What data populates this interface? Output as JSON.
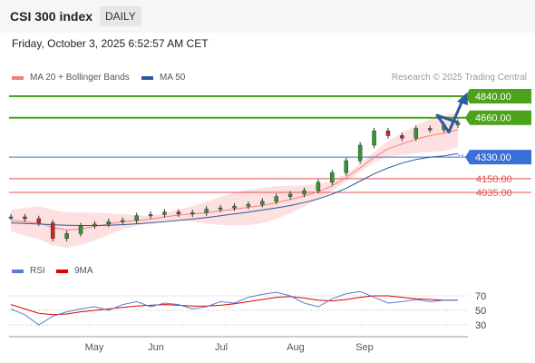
{
  "header": {
    "title": "CSI 300 index",
    "period": "DAILY"
  },
  "datetime": "Friday, October 3, 2025 6:52:57 AM CET",
  "legend": {
    "ma20": {
      "label": "MA 20 + Bollinger Bands",
      "color": "#f08080"
    },
    "ma50": {
      "label": "MA 50",
      "color": "#2d5a9c"
    },
    "rsi": {
      "label": "RSI",
      "color": "#5b7bd5"
    },
    "ma9": {
      "label": "9MA",
      "color": "#e00000"
    }
  },
  "credit": "Research © 2025 Trading Central",
  "chart_data": {
    "type": "candlestick",
    "levels": [
      {
        "value": 4840.0,
        "label": "4840.00",
        "kind": "target",
        "color": "#4aa31a"
      },
      {
        "value": 4660.0,
        "label": "4660.00",
        "kind": "target",
        "color": "#4aa31a"
      },
      {
        "value": 4330.0,
        "label": "4330.00",
        "kind": "pivot",
        "color": "#3a6fd8"
      },
      {
        "value": 4150.0,
        "label": "4150.00",
        "kind": "support",
        "color": "#e05050"
      },
      {
        "value": 4035.0,
        "label": "4035.00",
        "kind": "support",
        "color": "#e05050"
      }
    ],
    "x_labels": [
      "May",
      "Jun",
      "Jul",
      "Aug",
      "Sep"
    ],
    "price_approx": [
      3830,
      3815,
      3780,
      3650,
      3690,
      3755,
      3770,
      3790,
      3800,
      3840,
      3850,
      3870,
      3855,
      3865,
      3895,
      3905,
      3920,
      3935,
      3960,
      4000,
      4020,
      4050,
      4120,
      4200,
      4300,
      4430,
      4550,
      4510,
      4490,
      4570,
      4560,
      4600,
      4620
    ],
    "ma20_approx": [
      3800,
      3790,
      3780,
      3740,
      3720,
      3730,
      3750,
      3770,
      3790,
      3800,
      3810,
      3830,
      3845,
      3855,
      3865,
      3880,
      3895,
      3910,
      3925,
      3950,
      3975,
      4005,
      4040,
      4090,
      4160,
      4240,
      4330,
      4400,
      4440,
      4480,
      4510,
      4530,
      4560
    ],
    "ma50_approx": [
      3780,
      3775,
      3770,
      3765,
      3760,
      3758,
      3758,
      3760,
      3765,
      3772,
      3780,
      3790,
      3800,
      3812,
      3825,
      3840,
      3855,
      3870,
      3888,
      3905,
      3925,
      3950,
      3980,
      4020,
      4070,
      4130,
      4190,
      4240,
      4280,
      4310,
      4330,
      4340,
      4360
    ],
    "forecast": [
      4620,
      4680,
      4540,
      4840
    ],
    "rsi": {
      "levels": [
        70,
        50,
        30
      ],
      "labels": [
        "70",
        "50",
        "30"
      ],
      "rsi_approx": [
        52,
        44,
        30,
        42,
        48,
        52,
        55,
        50,
        58,
        62,
        55,
        60,
        58,
        52,
        55,
        62,
        60,
        68,
        72,
        75,
        70,
        60,
        55,
        66,
        73,
        76,
        68,
        60,
        62,
        65,
        62,
        64,
        64
      ],
      "ma9_approx": [
        58,
        52,
        46,
        44,
        45,
        48,
        50,
        52,
        54,
        56,
        57,
        58,
        57,
        56,
        56,
        57,
        59,
        62,
        65,
        68,
        69,
        67,
        64,
        63,
        65,
        68,
        70,
        70,
        68,
        66,
        65,
        64,
        64
      ]
    }
  }
}
